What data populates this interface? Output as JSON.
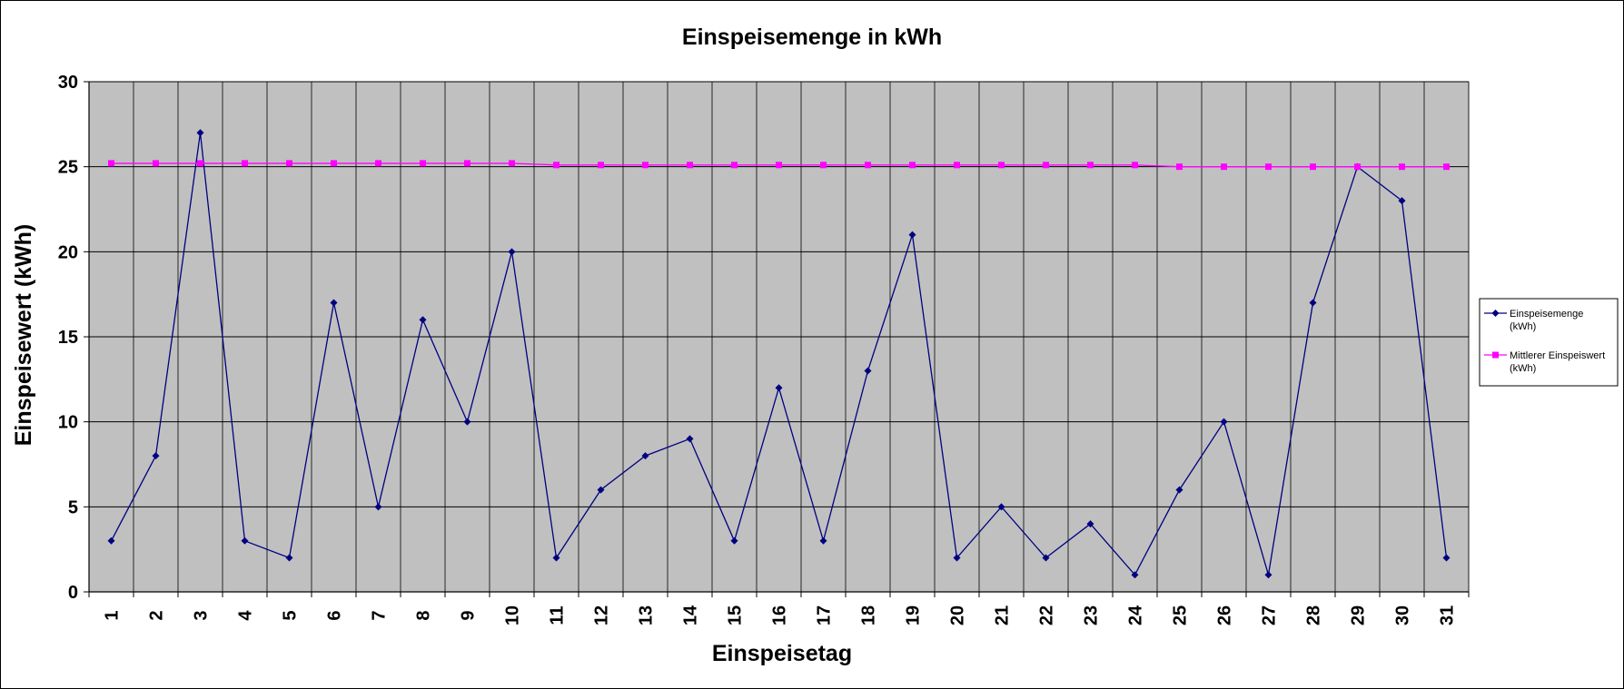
{
  "chart_data": {
    "type": "line",
    "title": "Einspeisemenge in kWh",
    "xlabel": "Einspeisetag",
    "ylabel": "Einspeisewert  (kWh)",
    "categories": [
      "1",
      "2",
      "3",
      "4",
      "5",
      "6",
      "7",
      "8",
      "9",
      "10",
      "11",
      "12",
      "13",
      "14",
      "15",
      "16",
      "17",
      "18",
      "19",
      "20",
      "21",
      "22",
      "23",
      "24",
      "25",
      "26",
      "27",
      "28",
      "29",
      "30",
      "31"
    ],
    "ylim": [
      0,
      30
    ],
    "yticks": [
      "0",
      "5",
      "10",
      "15",
      "20",
      "25",
      "30"
    ],
    "grid": true,
    "plot_background": "#c0c0c0",
    "legend_position": "right",
    "series": [
      {
        "name": "Einspeisemenge (kWh)",
        "legend_lines": [
          "Einspeisemenge",
          "(kWh)"
        ],
        "color": "#000080",
        "marker": "diamond",
        "values": [
          3,
          8,
          27,
          3,
          2,
          17,
          5,
          16,
          10,
          20,
          2,
          6,
          8,
          9,
          3,
          12,
          3,
          13,
          21,
          2,
          5,
          2,
          4,
          1,
          6,
          10,
          1,
          17,
          25,
          23,
          2
        ]
      },
      {
        "name": "Mittlerer Einspeiswert (kWh)",
        "legend_lines": [
          "Mittlerer Einspeiswert",
          "(kWh)"
        ],
        "color": "#ff00ff",
        "marker": "square",
        "values": [
          25.2,
          25.2,
          25.2,
          25.2,
          25.2,
          25.2,
          25.2,
          25.2,
          25.2,
          25.2,
          25.1,
          25.1,
          25.1,
          25.1,
          25.1,
          25.1,
          25.1,
          25.1,
          25.1,
          25.1,
          25.1,
          25.1,
          25.1,
          25.1,
          25.0,
          25.0,
          25.0,
          25.0,
          25.0,
          25.0,
          25.0
        ]
      }
    ]
  }
}
